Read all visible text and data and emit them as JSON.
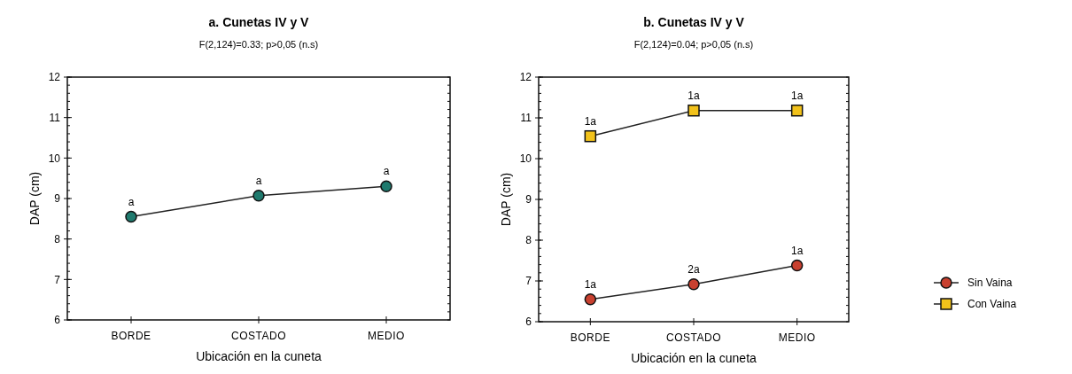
{
  "chart_data": [
    {
      "type": "line",
      "title": "a. Cunetas IV y V",
      "subtitle": "F(2,124)=0.33; p>0,05 (n.s)",
      "xlabel": "Ubicación en la cuneta",
      "ylabel": "DAP (cm)",
      "categories": [
        "BORDE",
        "COSTADO",
        "MEDIO"
      ],
      "ylim": [
        6,
        12
      ],
      "yticks": [
        6,
        7,
        8,
        9,
        10,
        11,
        12
      ],
      "grid": false,
      "legend": false,
      "series": [
        {
          "color": "#1f7a6e",
          "marker": "circle",
          "values": [
            8.55,
            9.07,
            9.3
          ]
        }
      ],
      "annotations": [
        {
          "text": "a",
          "x": "BORDE",
          "y": 8.55
        },
        {
          "text": "a",
          "x": "COSTADO",
          "y": 9.07
        },
        {
          "text": "a",
          "x": "MEDIO",
          "y": 9.3
        }
      ]
    },
    {
      "type": "line",
      "title": "b. Cunetas IV y V",
      "subtitle": "F(2,124)=0.04; p>0,05 (n.s)",
      "xlabel": "Ubicación en la cuneta",
      "ylabel": "DAP (cm)",
      "categories": [
        "BORDE",
        "COSTADO",
        "MEDIO"
      ],
      "ylim": [
        6,
        12
      ],
      "yticks": [
        6,
        7,
        8,
        9,
        10,
        11,
        12
      ],
      "grid": false,
      "legend": "bottom right",
      "series": [
        {
          "name": "Sin Vaina",
          "color": "#c8402f",
          "marker": "circle",
          "values": [
            6.55,
            6.92,
            7.38
          ]
        },
        {
          "name": "Con Vaina",
          "color": "#f2c21b",
          "marker": "square",
          "values": [
            10.55,
            11.18,
            11.18
          ]
        }
      ],
      "annotations": [
        {
          "text": "1a",
          "x": "BORDE",
          "y": 6.55
        },
        {
          "text": "2a",
          "x": "COSTADO",
          "y": 6.92
        },
        {
          "text": "1a",
          "x": "MEDIO",
          "y": 7.38
        },
        {
          "text": "1a",
          "x": "BORDE",
          "y": 10.55
        },
        {
          "text": "1a",
          "x": "COSTADO",
          "y": 11.18
        },
        {
          "text": "1a",
          "x": "MEDIO",
          "y": 11.18
        }
      ]
    }
  ]
}
